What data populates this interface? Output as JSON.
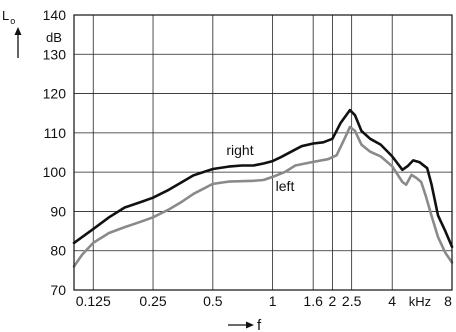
{
  "chart_data": {
    "type": "line",
    "x_scale": "log",
    "xlim": [
      0.1,
      8
    ],
    "ylim": [
      70,
      140
    ],
    "grid": true,
    "ylabel": "L",
    "ylabel_subscript": "o",
    "y_unit": "dB",
    "xlabel": "f",
    "x_unit": "kHz",
    "x_ticks": [
      {
        "value": 0.125,
        "label": "0.125"
      },
      {
        "value": 0.25,
        "label": "0.25"
      },
      {
        "value": 0.5,
        "label": "0.5"
      },
      {
        "value": 1,
        "label": "1"
      },
      {
        "value": 1.6,
        "label": "1.6"
      },
      {
        "value": 2,
        "label": "2"
      },
      {
        "value": 2.5,
        "label": "2.5"
      },
      {
        "value": 4,
        "label": "4"
      },
      {
        "value": 8,
        "label": "8"
      }
    ],
    "y_ticks": [
      70,
      80,
      90,
      100,
      110,
      120,
      130,
      140
    ],
    "series": [
      {
        "name": "right",
        "color": "#111111",
        "points": [
          [
            0.1,
            82
          ],
          [
            0.125,
            85.5
          ],
          [
            0.15,
            88.5
          ],
          [
            0.18,
            91
          ],
          [
            0.22,
            92.5
          ],
          [
            0.25,
            93.5
          ],
          [
            0.3,
            95.5
          ],
          [
            0.35,
            97.5
          ],
          [
            0.4,
            99.2
          ],
          [
            0.5,
            100.8
          ],
          [
            0.6,
            101.4
          ],
          [
            0.7,
            101.7
          ],
          [
            0.8,
            101.7
          ],
          [
            0.9,
            102.2
          ],
          [
            1.0,
            102.8
          ],
          [
            1.1,
            103.8
          ],
          [
            1.25,
            105.3
          ],
          [
            1.4,
            106.6
          ],
          [
            1.6,
            107.3
          ],
          [
            1.8,
            107.6
          ],
          [
            2.0,
            108.5
          ],
          [
            2.2,
            112.5
          ],
          [
            2.45,
            115.8
          ],
          [
            2.6,
            114.5
          ],
          [
            2.8,
            110.5
          ],
          [
            3.1,
            108.5
          ],
          [
            3.5,
            107
          ],
          [
            4.0,
            104
          ],
          [
            4.5,
            100.6
          ],
          [
            4.8,
            101.6
          ],
          [
            5.1,
            103
          ],
          [
            5.5,
            102.5
          ],
          [
            6.0,
            101
          ],
          [
            6.3,
            97
          ],
          [
            6.8,
            89
          ],
          [
            7.4,
            85
          ],
          [
            8.0,
            81
          ]
        ]
      },
      {
        "name": "left",
        "color": "#8a8a8a",
        "points": [
          [
            0.1,
            76
          ],
          [
            0.11,
            79
          ],
          [
            0.125,
            82
          ],
          [
            0.15,
            84.5
          ],
          [
            0.18,
            86
          ],
          [
            0.22,
            87.5
          ],
          [
            0.25,
            88.5
          ],
          [
            0.3,
            90.5
          ],
          [
            0.35,
            92.5
          ],
          [
            0.4,
            94.5
          ],
          [
            0.5,
            97
          ],
          [
            0.6,
            97.6
          ],
          [
            0.8,
            97.8
          ],
          [
            0.9,
            98
          ],
          [
            1.0,
            98.8
          ],
          [
            1.15,
            100
          ],
          [
            1.3,
            101.7
          ],
          [
            1.6,
            102.6
          ],
          [
            1.9,
            103.3
          ],
          [
            2.1,
            104.3
          ],
          [
            2.3,
            108.5
          ],
          [
            2.45,
            111.5
          ],
          [
            2.6,
            110.5
          ],
          [
            2.8,
            107
          ],
          [
            3.1,
            105.2
          ],
          [
            3.5,
            104
          ],
          [
            4.0,
            101.5
          ],
          [
            4.5,
            97.5
          ],
          [
            4.7,
            96.8
          ],
          [
            5.0,
            99.3
          ],
          [
            5.3,
            98.5
          ],
          [
            5.6,
            97.5
          ],
          [
            5.9,
            94
          ],
          [
            6.3,
            89
          ],
          [
            6.8,
            83.5
          ],
          [
            7.4,
            79.5
          ],
          [
            8.0,
            77
          ]
        ]
      }
    ]
  }
}
